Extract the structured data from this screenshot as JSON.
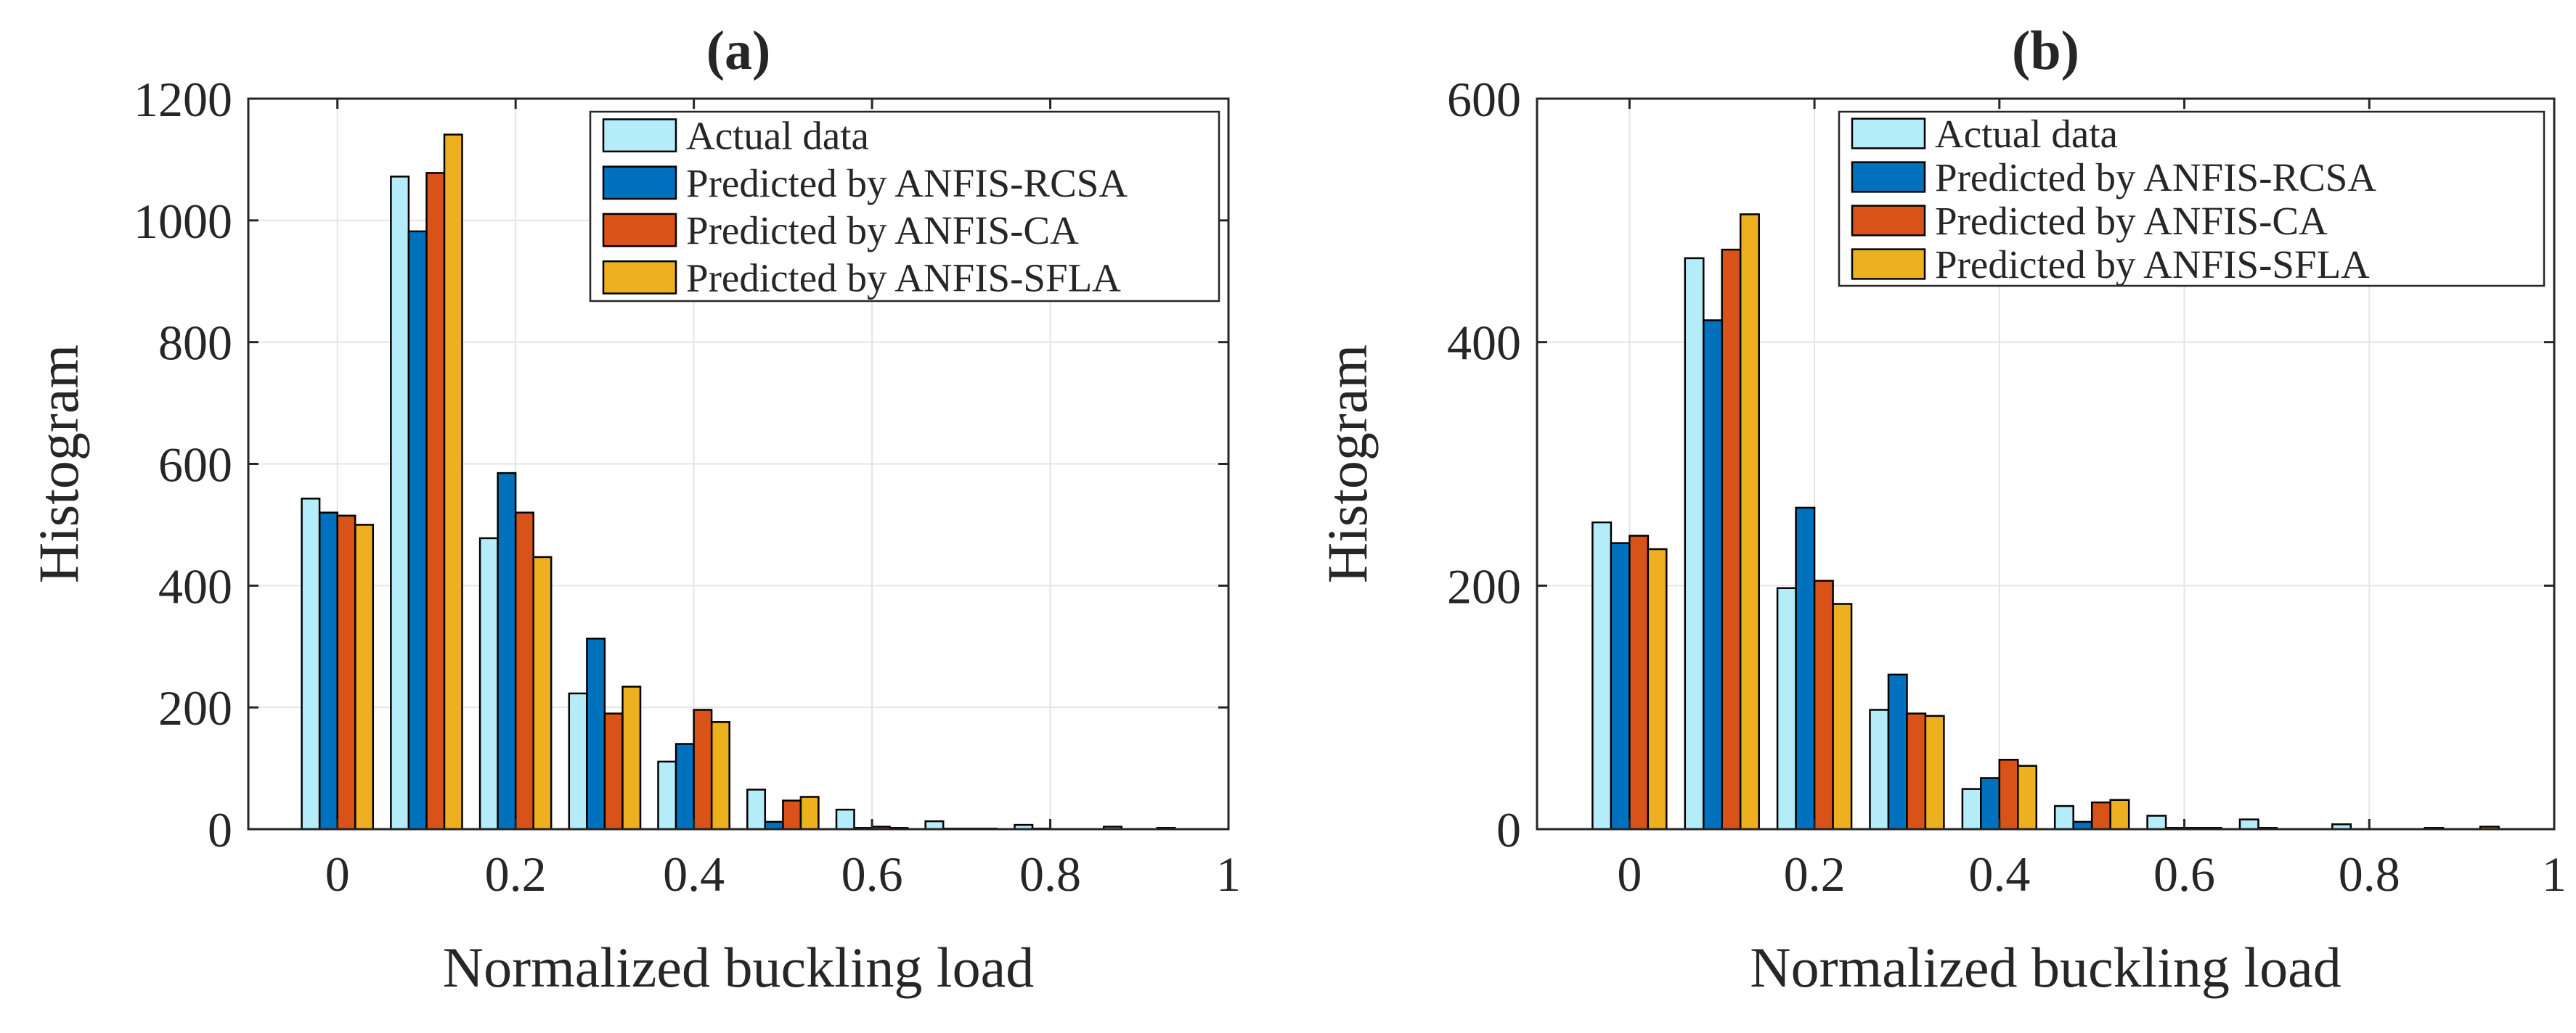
{
  "chart_data": [
    {
      "type": "bar",
      "title": "(a)",
      "xlabel": "Normalized buckling load",
      "ylabel": "Histogram",
      "xlim": [
        -0.1,
        1.0
      ],
      "ylim": [
        0,
        1200
      ],
      "xticks": [
        0,
        0.2,
        0.4,
        0.6,
        0.8,
        1
      ],
      "xtick_labels": [
        "0",
        "0.2",
        "0.4",
        "0.6",
        "0.8",
        "1"
      ],
      "yticks": [
        0,
        200,
        400,
        600,
        800,
        1000,
        1200
      ],
      "ytick_labels": [
        "0",
        "200",
        "400",
        "600",
        "800",
        "1000",
        "1200"
      ],
      "grid": true,
      "legend_position": "top-right",
      "x": [
        0,
        0.1,
        0.2,
        0.3,
        0.4,
        0.5,
        0.6,
        0.7,
        0.8,
        0.9
      ],
      "series": [
        {
          "name": "Actual data",
          "values": [
            543,
            1072,
            478,
            223,
            111,
            65,
            32,
            13,
            7,
            4
          ]
        },
        {
          "name": "Predicted by ANFIS-RCSA",
          "values": [
            520,
            982,
            585,
            313,
            140,
            12,
            2,
            1,
            1,
            0
          ]
        },
        {
          "name": "Predicted by ANFIS-CA",
          "values": [
            515,
            1078,
            520,
            190,
            196,
            47,
            4,
            1,
            0,
            0
          ]
        },
        {
          "name": "Predicted by ANFIS-SFLA",
          "values": [
            500,
            1141,
            447,
            234,
            176,
            53,
            2,
            1,
            0,
            2
          ]
        }
      ]
    },
    {
      "type": "bar",
      "title": "(b)",
      "xlabel": "Normalized buckling load",
      "ylabel": "Histogram",
      "xlim": [
        -0.1,
        1.0
      ],
      "ylim": [
        0,
        600
      ],
      "xticks": [
        0,
        0.2,
        0.4,
        0.6,
        0.8,
        1
      ],
      "xtick_labels": [
        "0",
        "0.2",
        "0.4",
        "0.6",
        "0.8",
        "1"
      ],
      "yticks": [
        0,
        200,
        400,
        600
      ],
      "ytick_labels": [
        "0",
        "200",
        "400",
        "600"
      ],
      "grid": true,
      "legend_position": "top-right",
      "x": [
        0,
        0.1,
        0.2,
        0.3,
        0.4,
        0.5,
        0.6,
        0.7,
        0.8,
        0.9
      ],
      "series": [
        {
          "name": "Actual data",
          "values": [
            252,
            469,
            198,
            98,
            33,
            19,
            11,
            8,
            4,
            1
          ]
        },
        {
          "name": "Predicted by ANFIS-RCSA",
          "values": [
            235,
            418,
            264,
            127,
            42,
            6,
            1,
            1,
            0,
            0
          ]
        },
        {
          "name": "Predicted by ANFIS-CA",
          "values": [
            241,
            476,
            204,
            95,
            57,
            22,
            1,
            0,
            0,
            0
          ]
        },
        {
          "name": "Predicted by ANFIS-SFLA",
          "values": [
            230,
            505,
            185,
            93,
            52,
            24,
            1,
            0,
            0,
            2
          ]
        }
      ]
    }
  ],
  "colors": [
    "#b5ecfa",
    "#0072bd",
    "#d95319",
    "#edb120"
  ]
}
